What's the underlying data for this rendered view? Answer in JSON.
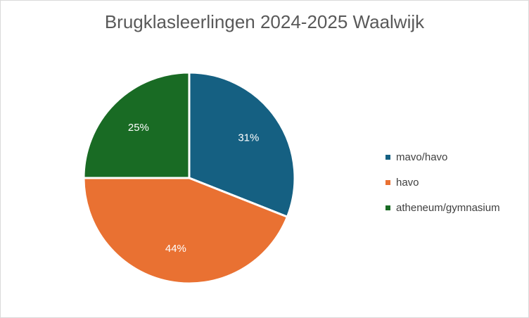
{
  "chart_data": {
    "type": "pie",
    "title": "Brugklasleerlingen 2024-2025 Waalwijk",
    "categories": [
      "mavo/havo",
      "havo",
      "atheneum/gymnasium"
    ],
    "values": [
      31,
      44,
      25
    ],
    "labels": [
      "31%",
      "44%",
      "25%"
    ],
    "colors": [
      "#156082",
      "#e97132",
      "#196b24"
    ],
    "legend_position": "right"
  }
}
